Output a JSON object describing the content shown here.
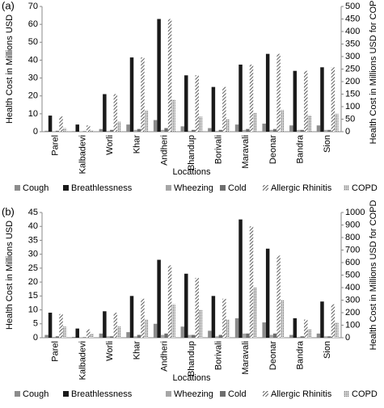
{
  "chart_data": [
    {
      "type": "bar",
      "label": "(a)",
      "y_label": "Health Cost in Millions USD",
      "y2_label": "Health Cost in Millions USD for COPD",
      "x_label": "Locations",
      "categories": [
        "Parel",
        "Kalbadevi",
        "Worli",
        "Khar",
        "Andheri",
        "Bhandup",
        "Borivali",
        "Maravali",
        "Deonar",
        "Bandra",
        "Sion"
      ],
      "series": [
        {
          "name": "Cough",
          "color": "#8c8c8c",
          "values": [
            0.5,
            0.3,
            1.5,
            4,
            6.5,
            3,
            2,
            4,
            4.5,
            3.5,
            3.5
          ]
        },
        {
          "name": "Breathlessness",
          "color": "#1a1a1a",
          "values": [
            9,
            4,
            21,
            41.5,
            63,
            31.5,
            25,
            37.5,
            43.5,
            34,
            36
          ]
        },
        {
          "name": "Wheezing",
          "color": "#a6a6a6",
          "values": [
            0.3,
            0.2,
            0.5,
            1,
            1,
            0.5,
            0.5,
            1,
            1,
            1,
            1
          ]
        },
        {
          "name": "Cold",
          "color": "#6e6e6e",
          "values": [
            0.5,
            0.3,
            1,
            1.5,
            2,
            1,
            1,
            1.5,
            1.5,
            1,
            1
          ]
        },
        {
          "name": "Allergic Rhinitis",
          "color": "#555555",
          "pattern": "hatch",
          "values": [
            8.5,
            3.5,
            21,
            41.5,
            63,
            31.5,
            25,
            37.5,
            43.5,
            34,
            36
          ]
        },
        {
          "name": "COPD",
          "color": "#888888",
          "pattern": "dots",
          "axis": "y2",
          "values": [
            14,
            5,
            40,
            85,
            128,
            60,
            50,
            75,
            86,
            65,
            72
          ]
        }
      ],
      "ylim": [
        0,
        70
      ],
      "yticks": [
        0,
        10,
        20,
        30,
        40,
        50,
        60,
        70
      ],
      "y2lim": [
        0,
        500
      ],
      "y2ticks": [
        0,
        50,
        100,
        150,
        200,
        250,
        300,
        350,
        400,
        450,
        500
      ]
    },
    {
      "type": "bar",
      "label": "(b)",
      "y_label": "Health Cost in Millions USD",
      "y2_label": "Health Cost in Millions USD for COPD",
      "x_label": "Locations",
      "categories": [
        "Parel",
        "Kalbadevi",
        "Worli",
        "Khar",
        "Andheri",
        "Bhandup",
        "Borivali",
        "Maravali",
        "Deonar",
        "Bandra",
        "Sion"
      ],
      "series": [
        {
          "name": "Cough",
          "color": "#8c8c8c",
          "values": [
            1,
            0.3,
            1.5,
            2,
            5,
            4,
            2.5,
            7,
            5.5,
            1,
            1.5
          ]
        },
        {
          "name": "Breathlessness",
          "color": "#1a1a1a",
          "values": [
            9,
            3.3,
            9.5,
            15,
            28,
            23,
            15,
            42.5,
            32,
            7,
            13
          ]
        },
        {
          "name": "Wheezing",
          "color": "#a6a6a6",
          "values": [
            0.3,
            0.1,
            0.5,
            0.5,
            1,
            1,
            0.5,
            1.5,
            1,
            0.3,
            0.5
          ]
        },
        {
          "name": "Cold",
          "color": "#6e6e6e",
          "values": [
            0.5,
            0.2,
            0.5,
            1,
            1.5,
            1,
            1,
            1.5,
            1.5,
            0.5,
            0.5
          ]
        },
        {
          "name": "Allergic Rhinitis",
          "color": "#555555",
          "pattern": "hatch",
          "values": [
            8.5,
            3,
            9,
            14,
            26,
            21.5,
            14,
            40,
            29.5,
            6.5,
            12
          ]
        },
        {
          "name": "COPD",
          "color": "#888888",
          "pattern": "dots",
          "axis": "y2",
          "values": [
            89,
            33,
            89,
            144,
            267,
            222,
            144,
            400,
            300,
            67,
            122
          ]
        }
      ],
      "ylim": [
        0,
        45
      ],
      "yticks": [
        0,
        5,
        10,
        15,
        20,
        25,
        30,
        35,
        40,
        45
      ],
      "y2lim": [
        0,
        1000
      ],
      "y2ticks": [
        0,
        100,
        200,
        300,
        400,
        500,
        600,
        700,
        800,
        900,
        1000
      ]
    }
  ]
}
